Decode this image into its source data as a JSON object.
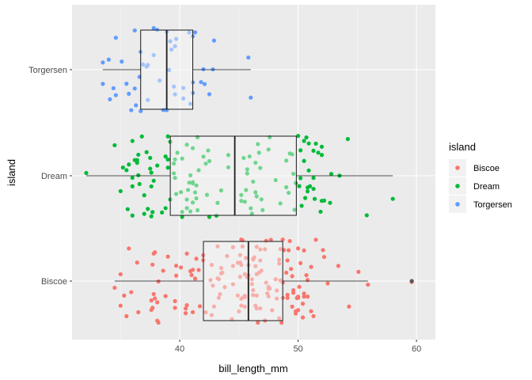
{
  "chart_data": {
    "type": "boxplot-jitter",
    "orientation": "horizontal",
    "xlabel": "bill_length_mm",
    "ylabel": "island",
    "xlim": [
      30.9,
      61.6
    ],
    "x_ticks": [
      40,
      50,
      60
    ],
    "grid": true,
    "legend": {
      "title": "island",
      "position": "right",
      "entries": [
        {
          "label": "Biscoe",
          "color": "#F8766D"
        },
        {
          "label": "Dream",
          "color": "#00BA38"
        },
        {
          "label": "Torgersen",
          "color": "#619CFF"
        }
      ]
    },
    "categories": [
      "Biscoe",
      "Dream",
      "Torgersen"
    ],
    "boxes": [
      {
        "category": "Biscoe",
        "whisker_low": 34.5,
        "q1": 42.0,
        "median": 45.8,
        "q3": 48.7,
        "whisker_high": 55.9,
        "outliers": [
          59.6
        ]
      },
      {
        "category": "Dream",
        "whisker_low": 32.1,
        "q1": 39.2,
        "median": 44.65,
        "q3": 49.85,
        "whisker_high": 58.0,
        "outliers": []
      },
      {
        "category": "Torgersen",
        "whisker_low": 33.5,
        "q1": 36.7,
        "median": 38.9,
        "q3": 41.1,
        "whisker_high": 46.0,
        "outliers": []
      }
    ],
    "points": {
      "Biscoe": [
        37.8,
        37.7,
        35.9,
        38.2,
        38.8,
        35.3,
        40.6,
        40.5,
        37.9,
        40.5,
        39.6,
        40.1,
        35.0,
        42.0,
        34.5,
        41.4,
        39.0,
        40.6,
        36.5,
        37.6,
        35.7,
        41.3,
        37.6,
        41.1,
        36.4,
        41.6,
        35.5,
        41.1,
        35.0,
        41.0,
        37.7,
        37.8,
        37.9,
        39.7,
        38.6,
        38.2,
        38.1,
        43.2,
        38.1,
        45.6,
        39.7,
        42.2,
        39.6,
        42.7,
        46.1,
        50.0,
        48.7,
        50.0,
        47.6,
        46.5,
        45.4,
        46.7,
        43.3,
        46.8,
        40.9,
        49.0,
        45.5,
        48.4,
        45.8,
        49.3,
        42.0,
        49.2,
        46.2,
        48.7,
        50.2,
        45.1,
        46.5,
        46.3,
        42.9,
        46.1,
        44.5,
        47.8,
        48.2,
        50.0,
        47.3,
        42.8,
        45.1,
        59.6,
        49.1,
        48.4,
        42.6,
        44.4,
        44.0,
        48.7,
        42.7,
        49.6,
        45.3,
        49.6,
        50.5,
        43.6,
        45.5,
        50.5,
        44.9,
        45.2,
        46.6,
        48.5,
        45.1,
        50.1,
        46.5,
        45.0,
        43.8,
        45.5,
        43.2,
        50.4,
        45.3,
        46.2,
        45.7,
        54.3,
        45.8,
        49.8,
        46.2,
        49.5,
        43.5,
        50.7,
        47.7,
        46.4,
        48.2,
        46.5,
        46.4,
        48.6,
        47.5,
        51.1,
        45.2,
        45.2,
        49.1,
        52.5,
        47.4,
        50.0,
        44.9,
        50.8,
        43.4,
        51.3,
        47.5,
        52.1,
        47.5,
        52.2,
        45.5,
        49.5,
        44.5,
        50.8,
        49.4,
        46.9,
        48.4,
        51.1,
        48.5,
        55.9,
        47.2,
        49.1,
        47.3,
        46.8,
        41.7,
        53.4,
        43.3,
        48.1,
        50.5,
        49.8,
        43.5,
        51.5,
        46.2,
        55.1,
        44.5,
        48.8,
        47.2,
        46.8,
        50.4,
        45.2,
        49.9
      ],
      "Dream": [
        39.5,
        37.2,
        39.5,
        40.9,
        36.4,
        39.2,
        38.8,
        42.2,
        37.6,
        39.8,
        36.5,
        40.8,
        36.0,
        44.1,
        37.0,
        39.6,
        41.1,
        37.5,
        36.0,
        42.3,
        39.6,
        40.1,
        35.0,
        42.0,
        34.5,
        41.4,
        39.0,
        40.6,
        36.5,
        37.6,
        35.7,
        41.3,
        37.6,
        41.1,
        36.4,
        41.6,
        35.5,
        41.1,
        36.2,
        37.7,
        40.2,
        41.4,
        35.2,
        40.6,
        38.8,
        41.5,
        39.0,
        44.1,
        38.5,
        43.1,
        36.8,
        37.5,
        38.1,
        41.1,
        35.6,
        40.2,
        37.0,
        39.7,
        40.2,
        40.6,
        32.1,
        40.7,
        37.3,
        39.0,
        39.2,
        36.6,
        36.0,
        37.8,
        36.0,
        41.5,
        46.5,
        50.0,
        51.3,
        45.4,
        52.7,
        45.2,
        46.1,
        51.3,
        46.0,
        51.3,
        46.6,
        51.7,
        47.0,
        52.0,
        45.9,
        50.5,
        50.3,
        58.0,
        46.4,
        49.2,
        42.4,
        48.5,
        43.2,
        50.6,
        46.7,
        52.0,
        50.5,
        49.5,
        46.4,
        52.8,
        40.9,
        54.2,
        42.5,
        51.0,
        49.7,
        47.5,
        47.6,
        52.0,
        46.9,
        53.5,
        49.0,
        46.2,
        50.9,
        45.5,
        50.9,
        50.8,
        50.1,
        49.0,
        51.5,
        49.8,
        48.1,
        51.4,
        45.7,
        50.7,
        42.5,
        52.2,
        45.2,
        49.3,
        50.2,
        45.6,
        51.9,
        46.8,
        45.7,
        55.8,
        43.5,
        49.6,
        50.8,
        50.2
      ],
      "Torgersen": [
        39.1,
        39.5,
        40.3,
        36.7,
        39.3,
        38.9,
        39.2,
        34.1,
        42.0,
        37.8,
        37.8,
        41.1,
        38.6,
        34.6,
        36.6,
        38.7,
        42.5,
        34.4,
        46.0,
        35.9,
        41.8,
        33.5,
        39.7,
        39.6,
        45.8,
        35.5,
        42.8,
        40.9,
        37.2,
        36.2,
        42.1,
        34.6,
        42.9,
        36.7,
        35.1,
        37.3,
        41.3,
        36.3,
        36.9,
        38.3,
        38.9,
        35.7,
        41.1,
        34.0,
        39.6,
        36.2,
        40.8,
        38.1,
        40.3,
        33.5,
        37.3,
        41.1
      ]
    }
  },
  "colors": {
    "panel": "#EBEBEB",
    "grid_major": "#FFFFFF",
    "grid_minor": "#F5F5F5",
    "box_fill": "#F7F7F7",
    "box_stroke": "#1A1A1A",
    "outlier": "#595959"
  }
}
